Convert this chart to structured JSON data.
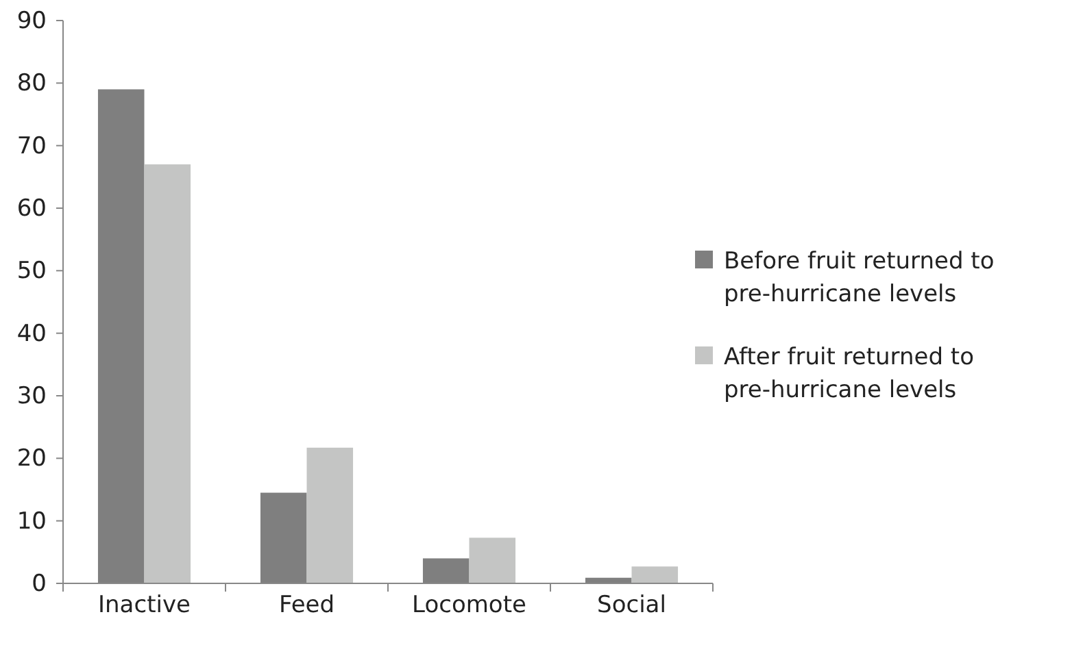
{
  "chart_data": {
    "type": "bar",
    "categories": [
      "Inactive",
      "Feed",
      "Locomote",
      "Social"
    ],
    "series": [
      {
        "name": "Before fruit returned to pre-hurricane levels",
        "color": "#7f7f7f",
        "values": [
          79,
          14.5,
          4,
          0.9
        ]
      },
      {
        "name": "After fruit returned to pre-hurricane levels",
        "color": "#c4c5c4",
        "values": [
          67,
          21.7,
          7.3,
          2.7
        ]
      }
    ],
    "ylim": [
      0,
      90
    ],
    "yticks": [
      0,
      10,
      20,
      30,
      40,
      50,
      60,
      70,
      80,
      90
    ],
    "grid": false,
    "legend": "right"
  }
}
